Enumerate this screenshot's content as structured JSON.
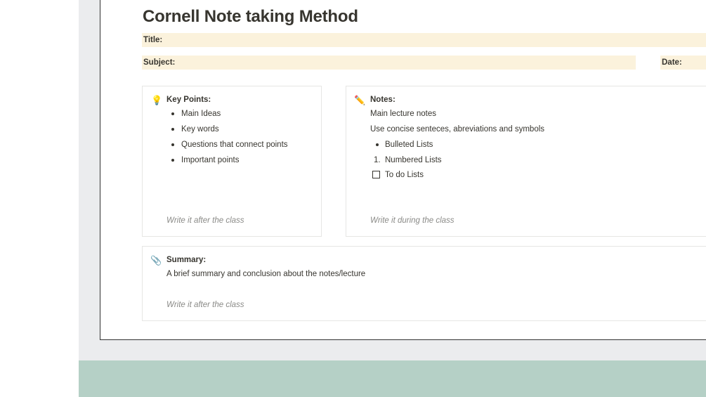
{
  "page_title": "Cornell Note taking Method",
  "fields": {
    "title": "Title:",
    "subject": "Subject:",
    "date": "Date:"
  },
  "key_points": {
    "icon": "lightbulb-icon",
    "heading": "Key Points:",
    "items": [
      "Main Ideas",
      "Key words",
      "Questions that connect points",
      "Important points"
    ],
    "footer": "Write it after the class"
  },
  "notes": {
    "icon": "pencil-icon",
    "heading": "Notes:",
    "line1": "Main lecture notes",
    "line2": "Use concise senteces, abreviations and symbols",
    "bullet": "Bulleted Lists",
    "numbered_marker": "1.",
    "numbered": "Numbered Lists",
    "todo": "To do Lists",
    "todo_checked": false,
    "footer": "Write it during the class"
  },
  "summary": {
    "icon": "paperclip-icon",
    "heading": "Summary:",
    "text": "A brief summary and conclusion about the notes/lecture",
    "footer": "Write it after the class"
  },
  "colors": {
    "field_bg": "#fbf2dc",
    "backdrop": "#ebecee",
    "footer_band": "#b5d0c6"
  }
}
